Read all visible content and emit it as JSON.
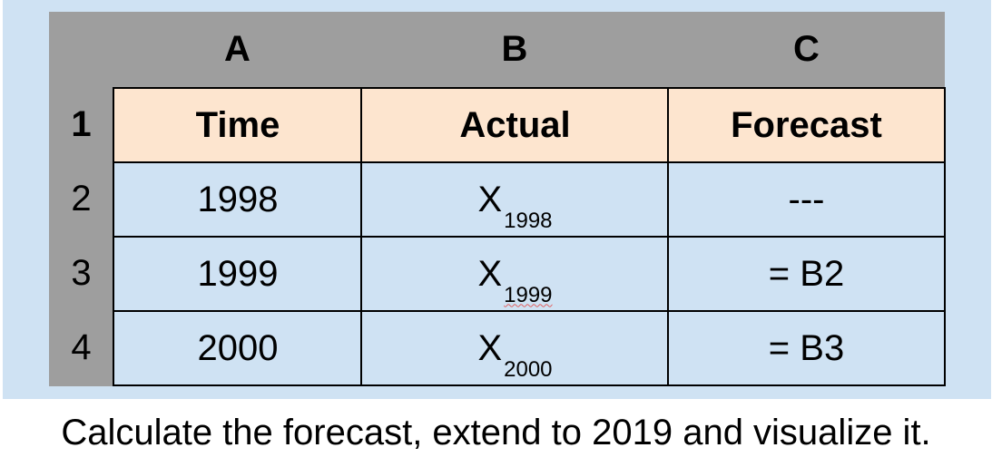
{
  "columns": [
    "A",
    "B",
    "C"
  ],
  "rows": [
    "1",
    "2",
    "3",
    "4"
  ],
  "table": {
    "header": [
      "Time",
      "Actual",
      "Forecast"
    ],
    "body": [
      {
        "time": "1998",
        "actual_sym": "X",
        "actual_sub": "1998",
        "forecast": "---"
      },
      {
        "time": "1999",
        "actual_sym": "X",
        "actual_sub": "1999",
        "forecast": "= B2"
      },
      {
        "time": "2000",
        "actual_sym": "X",
        "actual_sub": "2000",
        "forecast": "= B3"
      }
    ]
  },
  "caption": "Calculate the forecast, extend to 2019 and visualize it.",
  "colors": {
    "panel": "#cfe2f3",
    "header_fill": "#fde5cf",
    "gutter": "#9e9e9e",
    "grid": "#000000"
  }
}
